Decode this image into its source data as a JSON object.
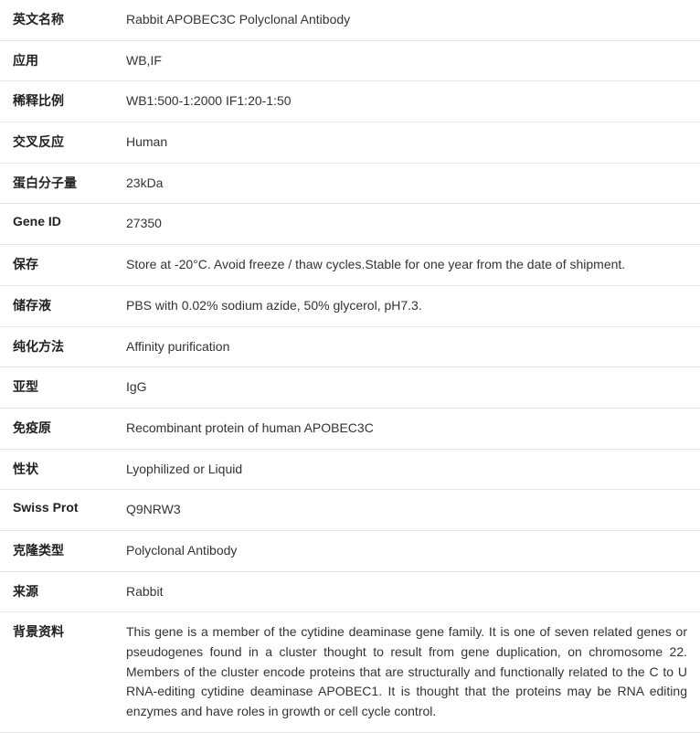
{
  "rows": [
    {
      "label": "英文名称",
      "value": "Rabbit APOBEC3C Polyclonal Antibody"
    },
    {
      "label": "应用",
      "value": "WB,IF"
    },
    {
      "label": "稀释比例",
      "value": "WB1:500-1:2000 IF1:20-1:50"
    },
    {
      "label": "交叉反应",
      "value": "Human"
    },
    {
      "label": "蛋白分子量",
      "value": "23kDa"
    },
    {
      "label": "Gene ID",
      "value": "27350"
    },
    {
      "label": "保存",
      "value": "Store at -20°C. Avoid freeze / thaw cycles.Stable for one year from the date of shipment."
    },
    {
      "label": "储存液",
      "value": "PBS with 0.02% sodium azide, 50% glycerol, pH7.3."
    },
    {
      "label": "纯化方法",
      "value": "Affinity purification"
    },
    {
      "label": "亚型",
      "value": "IgG"
    },
    {
      "label": "免疫原",
      "value": "Recombinant protein of human APOBEC3C"
    },
    {
      "label": "性状",
      "value": "Lyophilized or Liquid"
    },
    {
      "label": "Swiss Prot",
      "value": "Q9NRW3"
    },
    {
      "label": "克隆类型",
      "value": "Polyclonal Antibody"
    },
    {
      "label": "来源",
      "value": "Rabbit"
    },
    {
      "label": "背景资料",
      "value": "This gene is a member of the cytidine deaminase gene family. It is one of seven related genes or pseudogenes found in a cluster thought to result from gene duplication, on chromosome 22. Members of the cluster encode proteins that are structurally and functionally related to the C to U RNA-editing cytidine deaminase APOBEC1. It is thought that the proteins may be RNA editing enzymes and have roles in growth or cell cycle control."
    }
  ]
}
